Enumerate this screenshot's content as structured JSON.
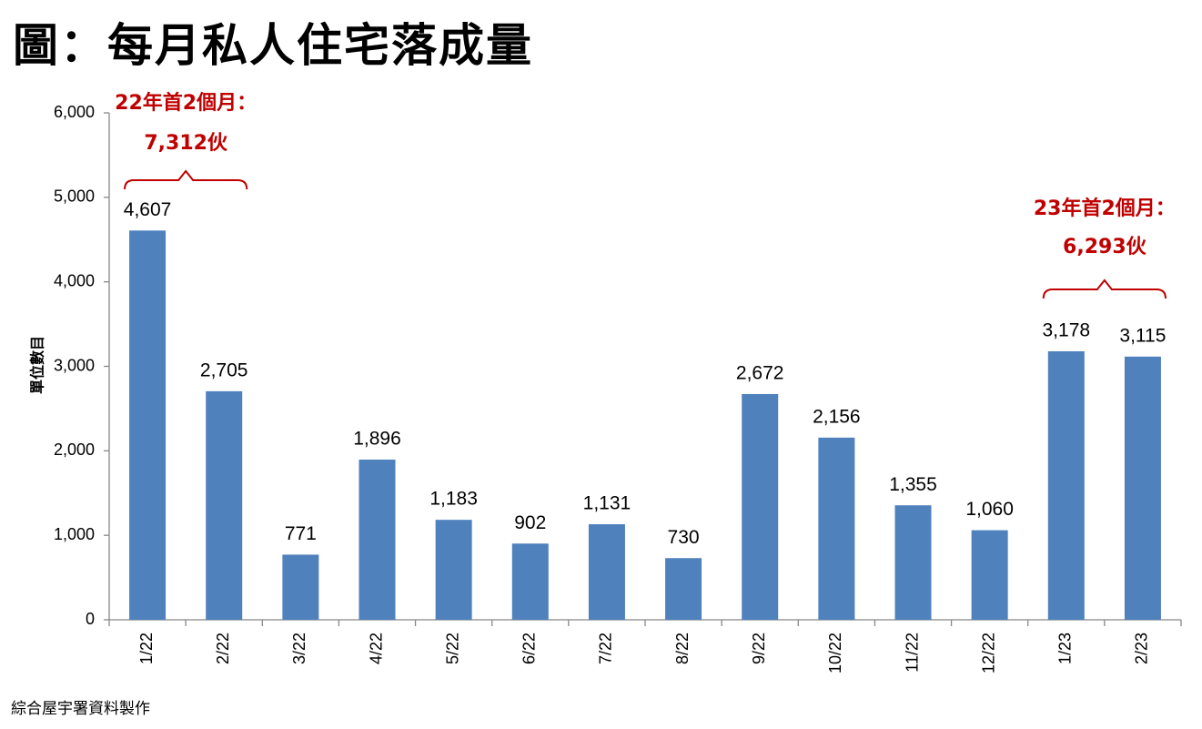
{
  "page": {
    "title": "圖：每月私人住宅落成量",
    "source": "綜合屋宇署資料製作"
  },
  "chart_data": {
    "type": "bar",
    "title": "圖：每月私人住宅落成量",
    "xlabel": "",
    "ylabel": "單位數目",
    "categories": [
      "1/22",
      "2/22",
      "3/22",
      "4/22",
      "5/22",
      "6/22",
      "7/22",
      "8/22",
      "9/22",
      "10/22",
      "11/22",
      "12/22",
      "1/23",
      "2/23"
    ],
    "values": [
      4607,
      2705,
      771,
      1896,
      1183,
      902,
      1131,
      730,
      2672,
      2156,
      1355,
      1060,
      3178,
      3115
    ],
    "value_labels": [
      "4,607",
      "2,705",
      "771",
      "1,896",
      "1,183",
      "902",
      "1,131",
      "730",
      "2,672",
      "2,156",
      "1,355",
      "1,060",
      "3,178",
      "3,115"
    ],
    "ylim": [
      0,
      6000
    ],
    "yticks": [
      0,
      1000,
      2000,
      3000,
      4000,
      5000,
      6000
    ],
    "ytick_labels": [
      "0",
      "1,000",
      "2,000",
      "3,000",
      "4,000",
      "5,000",
      "6,000"
    ],
    "grid": false,
    "bar_color": "#4f81bd",
    "annotations": [
      {
        "line1": "22年首2個月：",
        "line2": "7,312伙",
        "span": [
          "1/22",
          "2/22"
        ],
        "color": "#c00000"
      },
      {
        "line1": "23年首2個月：",
        "line2": "6,293伙",
        "span": [
          "1/23",
          "2/23"
        ],
        "color": "#c00000"
      }
    ]
  }
}
